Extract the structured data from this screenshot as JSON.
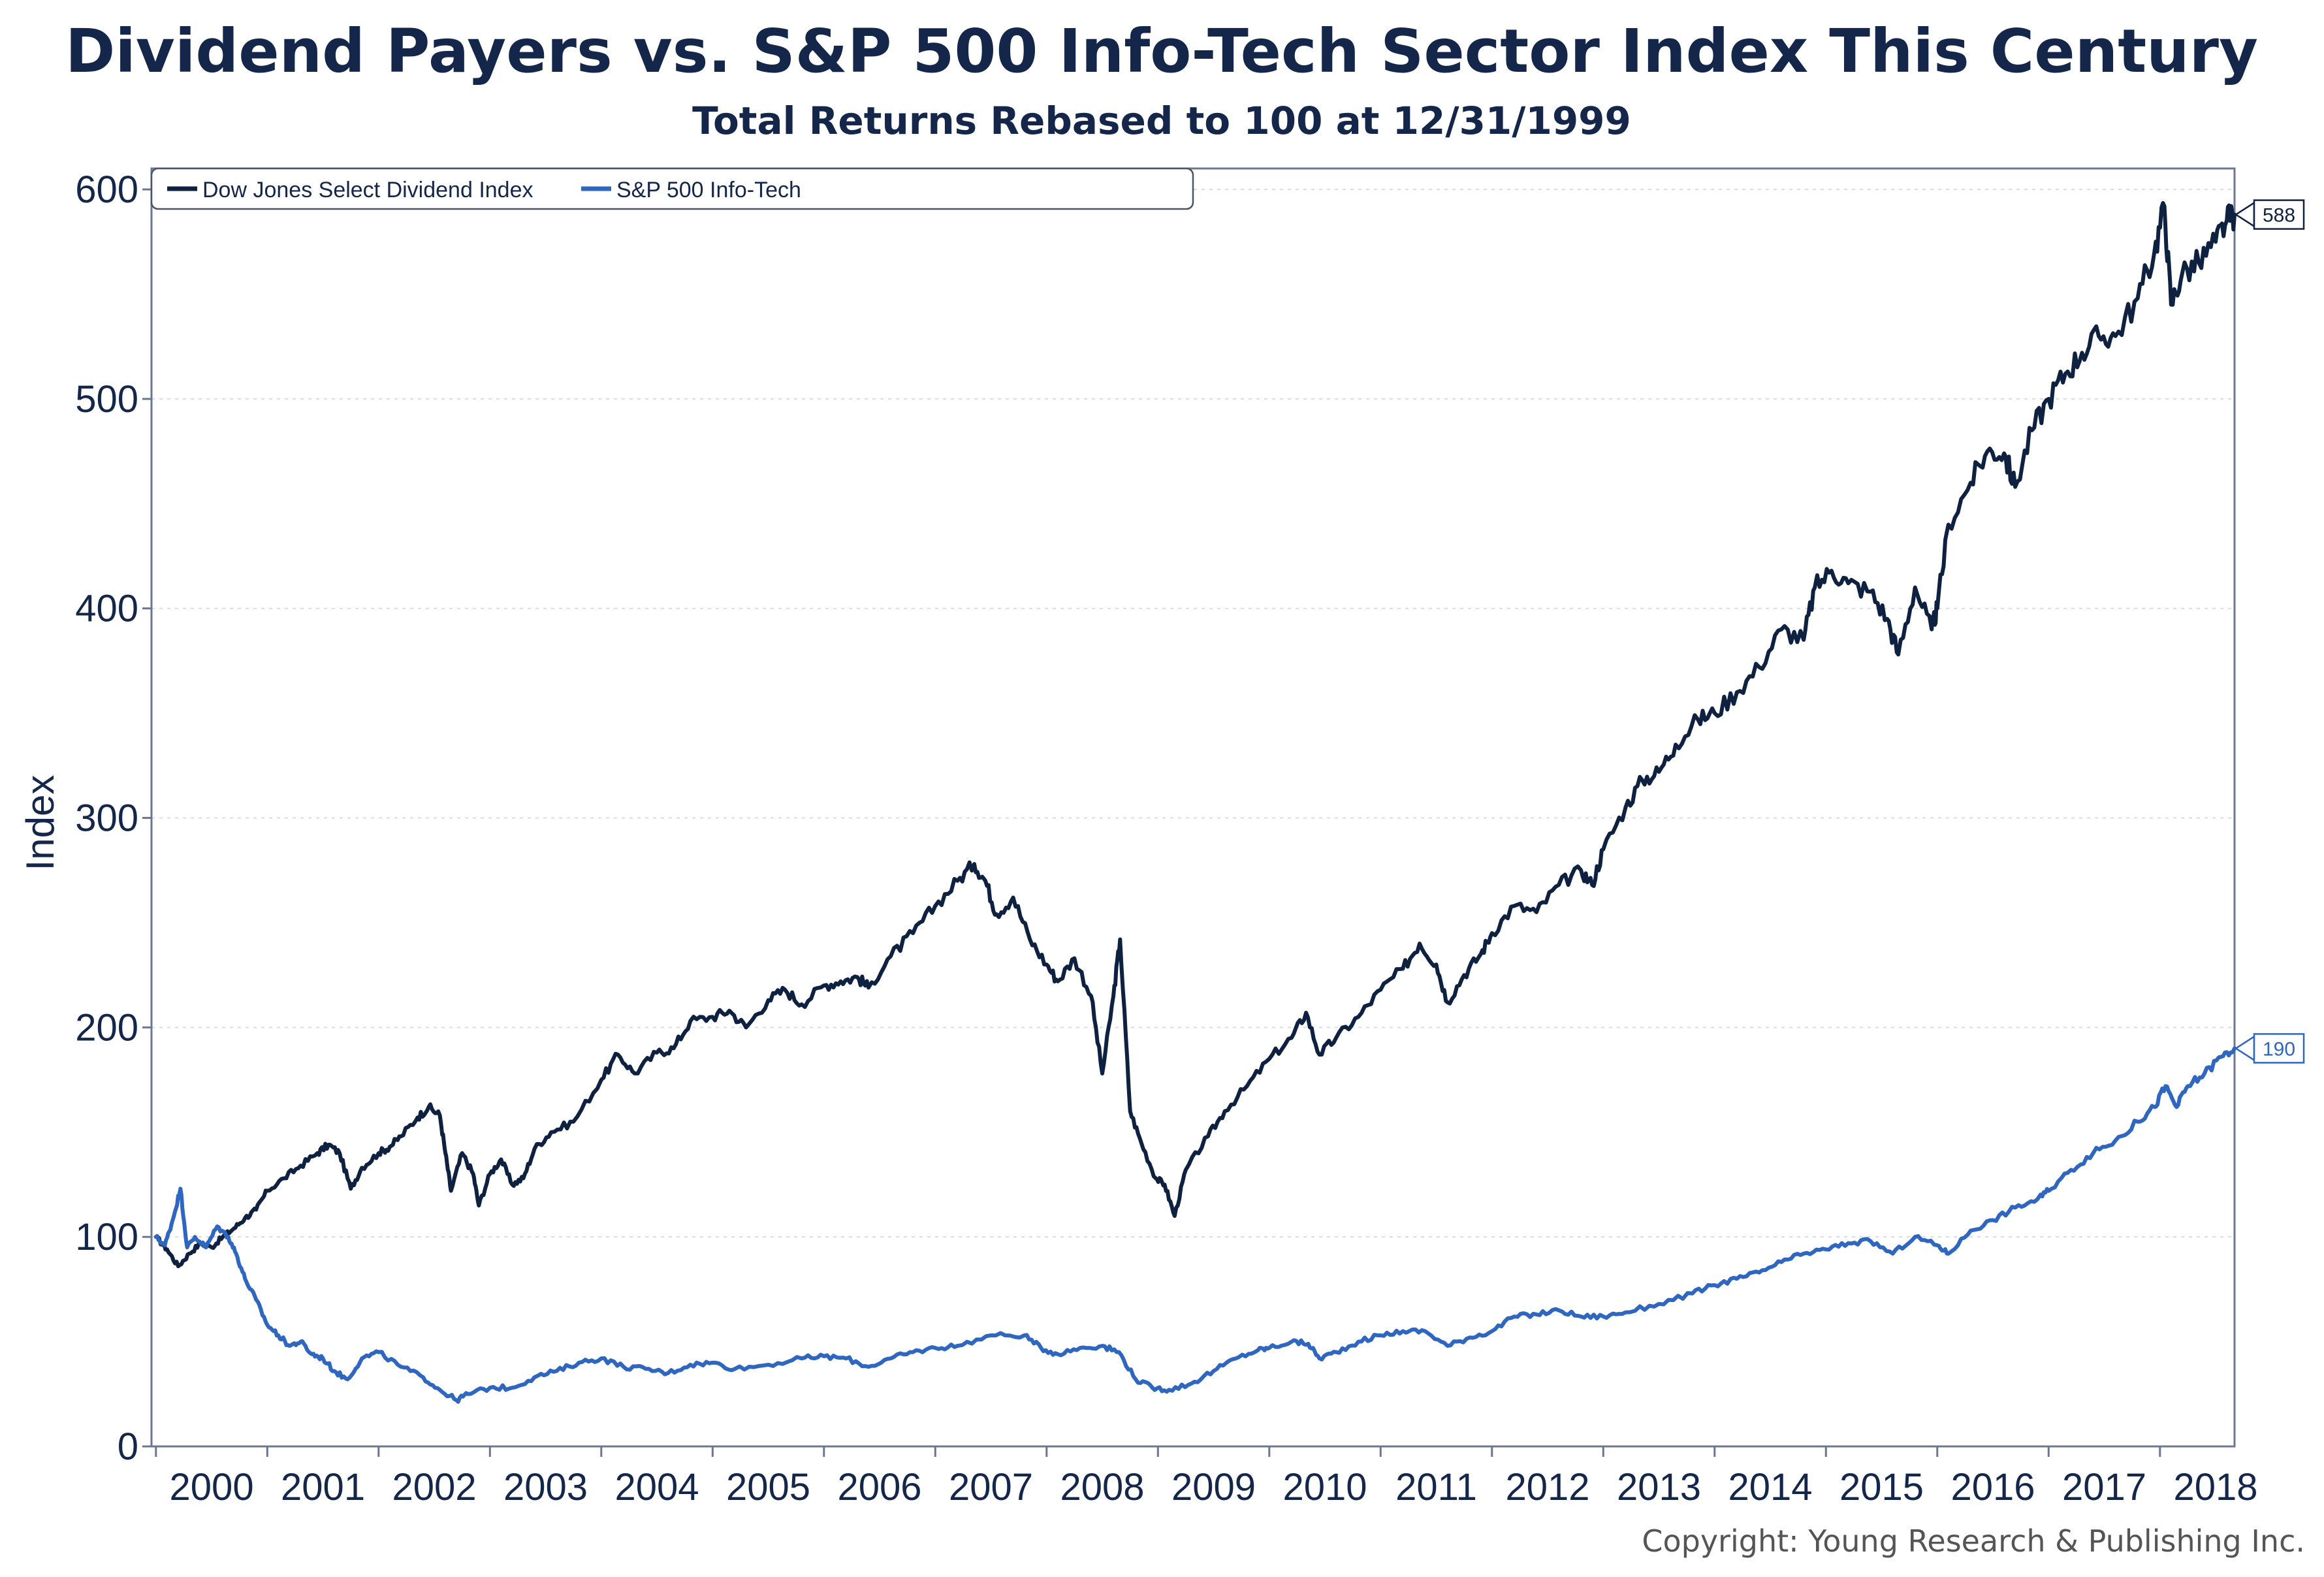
{
  "chart_data": {
    "type": "line",
    "title": "Dividend Payers vs. S&P 500 Info-Tech Sector Index This Century",
    "subtitle": "Total Returns Rebased to 100 at 12/31/1999",
    "ylabel": "Index",
    "xlabel": "",
    "ylim": [
      0,
      610
    ],
    "xlim": [
      1999.96,
      2018.67
    ],
    "y_ticks": [
      "0",
      "100",
      "200",
      "300",
      "400",
      "500",
      "600"
    ],
    "x_ticks": [
      "2000",
      "2001",
      "2002",
      "2003",
      "2004",
      "2005",
      "2006",
      "2007",
      "2008",
      "2009",
      "2010",
      "2011",
      "2012",
      "2013",
      "2014",
      "2015",
      "2016",
      "2017",
      "2018"
    ],
    "grid": true,
    "legend_position": "top-left",
    "series": [
      {
        "name": "Dow Jones Select Dividend Index",
        "color": "#0f2140",
        "end_label": "588",
        "points": [
          [
            2000.0,
            100
          ],
          [
            2000.1,
            94
          ],
          [
            2000.2,
            86
          ],
          [
            2000.3,
            92
          ],
          [
            2000.4,
            97
          ],
          [
            2000.5,
            95
          ],
          [
            2000.6,
            100
          ],
          [
            2000.7,
            104
          ],
          [
            2000.8,
            109
          ],
          [
            2000.9,
            113
          ],
          [
            2001.0,
            122
          ],
          [
            2001.15,
            128
          ],
          [
            2001.3,
            134
          ],
          [
            2001.45,
            140
          ],
          [
            2001.55,
            144
          ],
          [
            2001.65,
            140
          ],
          [
            2001.75,
            123
          ],
          [
            2001.85,
            133
          ],
          [
            2002.0,
            140
          ],
          [
            2002.1,
            143
          ],
          [
            2002.2,
            148
          ],
          [
            2002.35,
            157
          ],
          [
            2002.45,
            162
          ],
          [
            2002.55,
            158
          ],
          [
            2002.6,
            140
          ],
          [
            2002.65,
            122
          ],
          [
            2002.75,
            140
          ],
          [
            2002.85,
            130
          ],
          [
            2002.9,
            115
          ],
          [
            2003.0,
            130
          ],
          [
            2003.1,
            137
          ],
          [
            2003.2,
            125
          ],
          [
            2003.3,
            128
          ],
          [
            2003.4,
            142
          ],
          [
            2003.55,
            150
          ],
          [
            2003.75,
            155
          ],
          [
            2004.0,
            175
          ],
          [
            2004.15,
            187
          ],
          [
            2004.3,
            178
          ],
          [
            2004.5,
            188
          ],
          [
            2004.65,
            190
          ],
          [
            2004.8,
            203
          ],
          [
            2005.0,
            205
          ],
          [
            2005.15,
            208
          ],
          [
            2005.3,
            200
          ],
          [
            2005.5,
            213
          ],
          [
            2005.65,
            218
          ],
          [
            2005.8,
            211
          ],
          [
            2006.0,
            220
          ],
          [
            2006.15,
            222
          ],
          [
            2006.3,
            224
          ],
          [
            2006.4,
            219
          ],
          [
            2006.6,
            234
          ],
          [
            2006.8,
            245
          ],
          [
            2007.0,
            258
          ],
          [
            2007.2,
            270
          ],
          [
            2007.35,
            278
          ],
          [
            2007.45,
            270
          ],
          [
            2007.55,
            254
          ],
          [
            2007.7,
            262
          ],
          [
            2007.85,
            242
          ],
          [
            2008.0,
            230
          ],
          [
            2008.1,
            222
          ],
          [
            2008.25,
            233
          ],
          [
            2008.4,
            215
          ],
          [
            2008.5,
            178
          ],
          [
            2008.6,
            215
          ],
          [
            2008.66,
            242
          ],
          [
            2008.75,
            160
          ],
          [
            2008.85,
            145
          ],
          [
            2008.98,
            128
          ],
          [
            2009.06,
            125
          ],
          [
            2009.15,
            110
          ],
          [
            2009.25,
            132
          ],
          [
            2009.45,
            148
          ],
          [
            2009.6,
            160
          ],
          [
            2009.8,
            172
          ],
          [
            2010.0,
            185
          ],
          [
            2010.2,
            195
          ],
          [
            2010.33,
            207
          ],
          [
            2010.45,
            187
          ],
          [
            2010.6,
            195
          ],
          [
            2010.8,
            205
          ],
          [
            2011.0,
            218
          ],
          [
            2011.2,
            228
          ],
          [
            2011.35,
            240
          ],
          [
            2011.5,
            230
          ],
          [
            2011.6,
            212
          ],
          [
            2011.75,
            225
          ],
          [
            2011.9,
            235
          ],
          [
            2012.0,
            245
          ],
          [
            2012.2,
            258
          ],
          [
            2012.4,
            255
          ],
          [
            2012.6,
            268
          ],
          [
            2012.8,
            275
          ],
          [
            2012.9,
            268
          ],
          [
            2013.0,
            285
          ],
          [
            2013.2,
            305
          ],
          [
            2013.35,
            318
          ],
          [
            2013.5,
            322
          ],
          [
            2013.65,
            335
          ],
          [
            2013.85,
            347
          ],
          [
            2014.0,
            350
          ],
          [
            2014.2,
            360
          ],
          [
            2014.4,
            372
          ],
          [
            2014.6,
            390
          ],
          [
            2014.8,
            385
          ],
          [
            2014.9,
            410
          ],
          [
            2015.05,
            418
          ],
          [
            2015.2,
            412
          ],
          [
            2015.4,
            408
          ],
          [
            2015.55,
            395
          ],
          [
            2015.65,
            378
          ],
          [
            2015.8,
            410
          ],
          [
            2015.95,
            390
          ],
          [
            2016.0,
            400
          ],
          [
            2016.1,
            440
          ],
          [
            2016.3,
            460
          ],
          [
            2016.45,
            475
          ],
          [
            2016.6,
            474
          ],
          [
            2016.7,
            458
          ],
          [
            2016.85,
            485
          ],
          [
            2017.0,
            500
          ],
          [
            2017.15,
            512
          ],
          [
            2017.3,
            522
          ],
          [
            2017.45,
            530
          ],
          [
            2017.6,
            530
          ],
          [
            2017.8,
            548
          ],
          [
            2017.95,
            570
          ],
          [
            2018.04,
            592
          ],
          [
            2018.1,
            545
          ],
          [
            2018.2,
            560
          ],
          [
            2018.35,
            565
          ],
          [
            2018.5,
            575
          ],
          [
            2018.6,
            585
          ],
          [
            2018.67,
            588
          ]
        ]
      },
      {
        "name": "S&P 500 Info-Tech",
        "color": "#2e66c0",
        "end_label": "190",
        "points": [
          [
            2000.0,
            100
          ],
          [
            2000.08,
            96
          ],
          [
            2000.15,
            108
          ],
          [
            2000.22,
            123
          ],
          [
            2000.28,
            95
          ],
          [
            2000.35,
            100
          ],
          [
            2000.45,
            95
          ],
          [
            2000.55,
            105
          ],
          [
            2000.65,
            100
          ],
          [
            2000.72,
            92
          ],
          [
            2000.8,
            80
          ],
          [
            2000.9,
            70
          ],
          [
            2001.0,
            58
          ],
          [
            2001.1,
            53
          ],
          [
            2001.2,
            48
          ],
          [
            2001.3,
            50
          ],
          [
            2001.4,
            44
          ],
          [
            2001.5,
            42
          ],
          [
            2001.6,
            36
          ],
          [
            2001.72,
            32
          ],
          [
            2001.85,
            42
          ],
          [
            2002.0,
            45
          ],
          [
            2002.2,
            38
          ],
          [
            2002.4,
            33
          ],
          [
            2002.55,
            27
          ],
          [
            2002.7,
            22
          ],
          [
            2002.8,
            25
          ],
          [
            2003.0,
            28
          ],
          [
            2003.2,
            28
          ],
          [
            2003.4,
            33
          ],
          [
            2003.6,
            36
          ],
          [
            2003.8,
            40
          ],
          [
            2004.0,
            42
          ],
          [
            2004.2,
            38
          ],
          [
            2004.4,
            37
          ],
          [
            2004.6,
            35
          ],
          [
            2004.8,
            39
          ],
          [
            2005.0,
            40
          ],
          [
            2005.2,
            37
          ],
          [
            2005.5,
            39
          ],
          [
            2005.8,
            42
          ],
          [
            2006.0,
            43
          ],
          [
            2006.2,
            42
          ],
          [
            2006.4,
            38
          ],
          [
            2006.6,
            42
          ],
          [
            2006.8,
            45
          ],
          [
            2007.0,
            47
          ],
          [
            2007.2,
            48
          ],
          [
            2007.5,
            53
          ],
          [
            2007.8,
            53
          ],
          [
            2007.95,
            47
          ],
          [
            2008.1,
            44
          ],
          [
            2008.3,
            47
          ],
          [
            2008.5,
            48
          ],
          [
            2008.65,
            45
          ],
          [
            2008.8,
            32
          ],
          [
            2008.95,
            28
          ],
          [
            2009.1,
            27
          ],
          [
            2009.3,
            30
          ],
          [
            2009.5,
            36
          ],
          [
            2009.7,
            42
          ],
          [
            2009.9,
            46
          ],
          [
            2010.0,
            47
          ],
          [
            2010.2,
            50
          ],
          [
            2010.35,
            49
          ],
          [
            2010.45,
            42
          ],
          [
            2010.6,
            45
          ],
          [
            2010.8,
            50
          ],
          [
            2011.0,
            53
          ],
          [
            2011.2,
            55
          ],
          [
            2011.4,
            55
          ],
          [
            2011.6,
            48
          ],
          [
            2011.8,
            52
          ],
          [
            2012.0,
            55
          ],
          [
            2012.2,
            62
          ],
          [
            2012.4,
            63
          ],
          [
            2012.6,
            65
          ],
          [
            2012.8,
            62
          ],
          [
            2013.0,
            62
          ],
          [
            2013.2,
            64
          ],
          [
            2013.5,
            68
          ],
          [
            2013.8,
            73
          ],
          [
            2014.0,
            77
          ],
          [
            2014.2,
            80
          ],
          [
            2014.4,
            83
          ],
          [
            2014.6,
            88
          ],
          [
            2014.8,
            92
          ],
          [
            2015.0,
            94
          ],
          [
            2015.2,
            97
          ],
          [
            2015.4,
            98
          ],
          [
            2015.6,
            92
          ],
          [
            2015.8,
            100
          ],
          [
            2016.0,
            96
          ],
          [
            2016.1,
            92
          ],
          [
            2016.3,
            103
          ],
          [
            2016.5,
            108
          ],
          [
            2016.7,
            114
          ],
          [
            2016.9,
            118
          ],
          [
            2017.0,
            122
          ],
          [
            2017.2,
            132
          ],
          [
            2017.4,
            140
          ],
          [
            2017.6,
            146
          ],
          [
            2017.8,
            155
          ],
          [
            2017.95,
            162
          ],
          [
            2018.05,
            172
          ],
          [
            2018.15,
            162
          ],
          [
            2018.25,
            172
          ],
          [
            2018.4,
            178
          ],
          [
            2018.55,
            186
          ],
          [
            2018.67,
            190
          ]
        ]
      }
    ]
  },
  "copyright": "Copyright: Young Research & Publishing Inc."
}
